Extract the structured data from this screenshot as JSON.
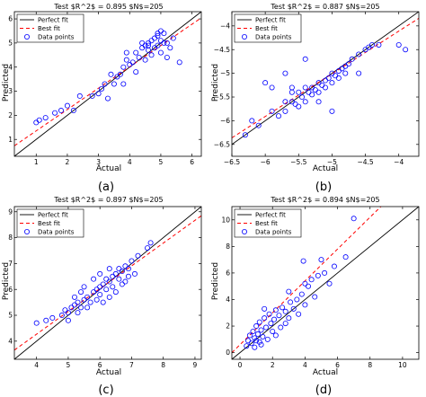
{
  "figure": {
    "panels": [
      {
        "title": "Test $R^2$ = 0.895 $N$=205",
        "caption": "(a)",
        "legend": {
          "perfect": "Perfect fit",
          "best": "Best fit",
          "points": "Data points"
        },
        "xlabel": "Actual",
        "ylabel": "Predicted"
      },
      {
        "title": "Test $R^2$ = 0.887 $N$=205",
        "caption": "(b)",
        "legend": {
          "perfect": "Perfect fit",
          "best": "Best fit",
          "points": "Data points"
        },
        "xlabel": "Actual",
        "ylabel": "Predicted"
      },
      {
        "title": "Test $R^2$ = 0.897 $N$=205",
        "caption": "(c)",
        "legend": {
          "perfect": "Perfect fit",
          "best": "Best fit",
          "points": "Data points"
        },
        "xlabel": "Actual",
        "ylabel": "Predicted"
      },
      {
        "title": "Test $R^2$ = 0.894 $N$=205",
        "caption": "(d)",
        "legend": {
          "perfect": "Perfect fit",
          "best": "Best fit",
          "points": "Data points"
        },
        "xlabel": "Actual",
        "ylabel": "Predicted"
      }
    ]
  },
  "chart_data": [
    {
      "type": "scatter",
      "title": "Test $R^2$ = 0.895 $N$=205",
      "xlabel": "Actual",
      "ylabel": "Predicted",
      "xlim": [
        0.3,
        6.3
      ],
      "ylim": [
        0.3,
        6.3
      ],
      "xticks": [
        1,
        2,
        3,
        4,
        5,
        6
      ],
      "yticks": [
        1,
        2,
        3,
        4,
        5,
        6
      ],
      "legend_position": "top-left",
      "grid": false,
      "perfect_fit": {
        "slope": 1,
        "intercept": 0
      },
      "best_fit": {
        "slope": 0.885,
        "intercept": 0.47
      },
      "colors": {
        "perfect": "#000000",
        "best": "#ff0000",
        "points": "#0000ff"
      },
      "points": [
        [
          1.0,
          1.7
        ],
        [
          1.1,
          1.8
        ],
        [
          1.3,
          1.9
        ],
        [
          1.6,
          2.1
        ],
        [
          1.8,
          2.2
        ],
        [
          2.0,
          2.4
        ],
        [
          2.2,
          2.2
        ],
        [
          2.4,
          2.8
        ],
        [
          2.8,
          2.8
        ],
        [
          3.0,
          2.9
        ],
        [
          3.1,
          3.1
        ],
        [
          3.2,
          3.3
        ],
        [
          3.3,
          2.7
        ],
        [
          3.4,
          3.7
        ],
        [
          3.5,
          3.3
        ],
        [
          3.6,
          3.6
        ],
        [
          3.7,
          3.7
        ],
        [
          3.8,
          4.0
        ],
        [
          3.8,
          3.3
        ],
        [
          3.9,
          4.6
        ],
        [
          3.9,
          4.3
        ],
        [
          4.0,
          4.1
        ],
        [
          4.1,
          4.2
        ],
        [
          4.2,
          4.6
        ],
        [
          4.3,
          4.4
        ],
        [
          4.4,
          4.8
        ],
        [
          4.5,
          4.9
        ],
        [
          4.5,
          4.3
        ],
        [
          4.6,
          4.7
        ],
        [
          4.6,
          5.0
        ],
        [
          4.7,
          4.5
        ],
        [
          4.7,
          5.1
        ],
        [
          4.8,
          4.8
        ],
        [
          4.8,
          5.2
        ],
        [
          4.9,
          4.9
        ],
        [
          4.9,
          5.3
        ],
        [
          5.0,
          5.1
        ],
        [
          5.0,
          4.6
        ],
        [
          5.1,
          5.4
        ],
        [
          5.2,
          5.0
        ],
        [
          5.3,
          4.8
        ],
        [
          5.4,
          5.2
        ],
        [
          5.0,
          5.5
        ],
        [
          4.9,
          5.4
        ],
        [
          4.4,
          5.0
        ],
        [
          4.2,
          3.8
        ],
        [
          5.2,
          4.4
        ],
        [
          5.6,
          4.2
        ],
        [
          4.6,
          4.9
        ],
        [
          5.1,
          5.0
        ]
      ]
    },
    {
      "type": "scatter",
      "title": "Test $R^2$ = 0.887 $N$=205",
      "xlabel": "Actual",
      "ylabel": "Predicted",
      "xlim": [
        -6.5,
        -3.7
      ],
      "ylim": [
        -6.75,
        -3.7
      ],
      "xticks": [
        -6.5,
        -6.0,
        -5.5,
        -5.0,
        -4.5,
        -4.0
      ],
      "yticks": [
        -6.5,
        -6.0,
        -5.5,
        -5.0,
        -4.5,
        -4.0
      ],
      "legend_position": "top-left",
      "grid": false,
      "perfect_fit": {
        "slope": 1,
        "intercept": 0
      },
      "best_fit": {
        "slope": 0.9,
        "intercept": -0.51
      },
      "colors": {
        "perfect": "#000000",
        "best": "#ff0000",
        "points": "#0000ff"
      },
      "points": [
        [
          -6.3,
          -6.3
        ],
        [
          -6.1,
          -6.1
        ],
        [
          -6.0,
          -5.2
        ],
        [
          -5.9,
          -5.3
        ],
        [
          -5.9,
          -5.8
        ],
        [
          -5.8,
          -5.9
        ],
        [
          -5.7,
          -5.6
        ],
        [
          -5.7,
          -5.8
        ],
        [
          -5.6,
          -5.4
        ],
        [
          -5.6,
          -5.6
        ],
        [
          -5.55,
          -5.65
        ],
        [
          -5.5,
          -5.4
        ],
        [
          -5.5,
          -5.7
        ],
        [
          -5.45,
          -5.5
        ],
        [
          -5.4,
          -5.3
        ],
        [
          -5.4,
          -5.6
        ],
        [
          -5.35,
          -5.4
        ],
        [
          -5.3,
          -5.3
        ],
        [
          -5.3,
          -5.45
        ],
        [
          -5.25,
          -5.35
        ],
        [
          -5.2,
          -5.2
        ],
        [
          -5.2,
          -5.4
        ],
        [
          -5.15,
          -5.25
        ],
        [
          -5.1,
          -5.15
        ],
        [
          -5.1,
          -5.3
        ],
        [
          -5.05,
          -5.1
        ],
        [
          -5.0,
          -5.0
        ],
        [
          -5.0,
          -5.2
        ],
        [
          -4.95,
          -5.05
        ],
        [
          -4.9,
          -4.95
        ],
        [
          -4.9,
          -5.1
        ],
        [
          -4.85,
          -4.9
        ],
        [
          -4.8,
          -4.85
        ],
        [
          -4.75,
          -4.8
        ],
        [
          -4.7,
          -4.7
        ],
        [
          -4.6,
          -4.6
        ],
        [
          -4.5,
          -4.5
        ],
        [
          -4.45,
          -4.45
        ],
        [
          -4.4,
          -4.4
        ],
        [
          -4.3,
          -4.4
        ],
        [
          -4.0,
          -4.4
        ],
        [
          -3.9,
          -4.5
        ],
        [
          -5.7,
          -5.0
        ],
        [
          -5.6,
          -5.3
        ],
        [
          -5.4,
          -4.7
        ],
        [
          -5.0,
          -5.8
        ],
        [
          -5.2,
          -5.6
        ],
        [
          -4.8,
          -5.0
        ],
        [
          -4.6,
          -5.0
        ],
        [
          -6.2,
          -6.0
        ]
      ]
    },
    {
      "type": "scatter",
      "title": "Test $R^2$ = 0.897 $N$=205",
      "xlabel": "Actual",
      "ylabel": "Predicted",
      "xlim": [
        3.3,
        9.2
      ],
      "ylim": [
        3.3,
        9.2
      ],
      "xticks": [
        4,
        5,
        6,
        7,
        8,
        9
      ],
      "yticks": [
        4,
        5,
        6,
        7,
        8,
        9
      ],
      "legend_position": "top-left",
      "grid": false,
      "perfect_fit": {
        "slope": 1,
        "intercept": 0
      },
      "best_fit": {
        "slope": 0.88,
        "intercept": 0.75
      },
      "colors": {
        "perfect": "#000000",
        "best": "#ff0000",
        "points": "#0000ff"
      },
      "points": [
        [
          4.0,
          4.7
        ],
        [
          4.3,
          4.8
        ],
        [
          4.5,
          4.9
        ],
        [
          4.8,
          5.0
        ],
        [
          4.9,
          5.2
        ],
        [
          5.0,
          5.1
        ],
        [
          5.0,
          4.8
        ],
        [
          5.1,
          5.3
        ],
        [
          5.2,
          5.4
        ],
        [
          5.3,
          5.5
        ],
        [
          5.4,
          5.3
        ],
        [
          5.5,
          5.6
        ],
        [
          5.6,
          5.7
        ],
        [
          5.7,
          5.5
        ],
        [
          5.8,
          5.9
        ],
        [
          5.9,
          6.0
        ],
        [
          5.9,
          5.6
        ],
        [
          6.0,
          6.1
        ],
        [
          6.0,
          5.8
        ],
        [
          6.1,
          6.2
        ],
        [
          6.2,
          6.0
        ],
        [
          6.2,
          6.4
        ],
        [
          6.3,
          6.3
        ],
        [
          6.4,
          6.5
        ],
        [
          6.4,
          6.1
        ],
        [
          6.5,
          6.6
        ],
        [
          6.6,
          6.4
        ],
        [
          6.7,
          6.7
        ],
        [
          6.8,
          6.9
        ],
        [
          6.9,
          6.8
        ],
        [
          7.0,
          7.1
        ],
        [
          7.2,
          7.3
        ],
        [
          7.5,
          7.6
        ],
        [
          7.6,
          7.8
        ],
        [
          5.8,
          6.4
        ],
        [
          6.3,
          6.8
        ],
        [
          5.5,
          6.1
        ],
        [
          6.5,
          5.9
        ],
        [
          6.1,
          5.5
        ],
        [
          6.8,
          6.3
        ],
        [
          5.2,
          5.7
        ],
        [
          6.6,
          6.8
        ],
        [
          5.4,
          5.9
        ],
        [
          6.0,
          6.6
        ],
        [
          6.3,
          5.7
        ],
        [
          5.6,
          5.3
        ],
        [
          7.1,
          6.6
        ],
        [
          6.7,
          6.2
        ],
        [
          5.3,
          5.1
        ],
        [
          6.9,
          6.5
        ]
      ]
    },
    {
      "type": "scatter",
      "title": "Test $R^2$ = 0.894 $N$=205",
      "xlabel": "Actual",
      "ylabel": "Predicted",
      "xlim": [
        -0.5,
        11.0
      ],
      "ylim": [
        -0.5,
        11.0
      ],
      "xticks": [
        0,
        2,
        4,
        6,
        8,
        10
      ],
      "yticks": [
        0,
        2,
        4,
        6,
        8,
        10
      ],
      "legend_position": "top-left",
      "grid": false,
      "perfect_fit": {
        "slope": 1,
        "intercept": 0
      },
      "best_fit": {
        "slope": 1.2,
        "intercept": 0.6
      },
      "colors": {
        "perfect": "#000000",
        "best": "#ff0000",
        "points": "#0000ff"
      },
      "points": [
        [
          0.4,
          0.5
        ],
        [
          0.5,
          0.9
        ],
        [
          0.6,
          1.3
        ],
        [
          0.7,
          0.7
        ],
        [
          0.8,
          1.6
        ],
        [
          0.9,
          1.1
        ],
        [
          1.0,
          0.9
        ],
        [
          1.0,
          2.0
        ],
        [
          1.1,
          1.4
        ],
        [
          1.2,
          0.8
        ],
        [
          1.2,
          2.3
        ],
        [
          1.3,
          1.7
        ],
        [
          1.4,
          1.2
        ],
        [
          1.5,
          2.6
        ],
        [
          1.6,
          1.9
        ],
        [
          1.7,
          1.0
        ],
        [
          1.8,
          2.9
        ],
        [
          1.9,
          2.2
        ],
        [
          2.0,
          1.6
        ],
        [
          2.1,
          2.5
        ],
        [
          2.2,
          3.2
        ],
        [
          2.4,
          2.8
        ],
        [
          2.5,
          1.9
        ],
        [
          2.6,
          3.4
        ],
        [
          2.8,
          3.1
        ],
        [
          3.0,
          2.6
        ],
        [
          3.1,
          3.8
        ],
        [
          3.3,
          3.3
        ],
        [
          3.5,
          4.0
        ],
        [
          3.6,
          2.9
        ],
        [
          3.8,
          4.4
        ],
        [
          4.0,
          3.6
        ],
        [
          4.2,
          5.0
        ],
        [
          4.4,
          5.5
        ],
        [
          4.6,
          4.2
        ],
        [
          4.8,
          5.8
        ],
        [
          5.0,
          7.0
        ],
        [
          5.2,
          6.0
        ],
        [
          5.5,
          5.2
        ],
        [
          5.8,
          6.5
        ],
        [
          6.5,
          7.2
        ],
        [
          7.0,
          10.1
        ],
        [
          3.0,
          4.6
        ],
        [
          2.2,
          1.3
        ],
        [
          1.5,
          3.3
        ],
        [
          0.9,
          0.4
        ],
        [
          4.0,
          5.2
        ],
        [
          2.8,
          2.2
        ],
        [
          3.9,
          6.9
        ],
        [
          1.3,
          0.6
        ]
      ]
    }
  ]
}
